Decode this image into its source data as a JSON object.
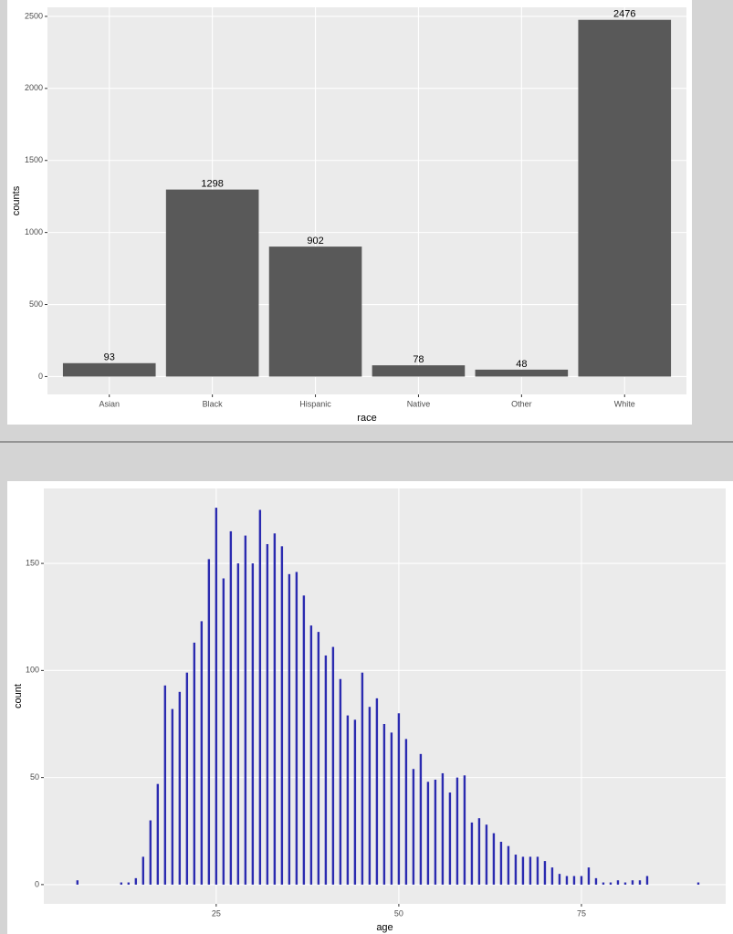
{
  "chart_data": [
    {
      "type": "bar",
      "x_label": "race",
      "y_label": "counts",
      "categories": [
        "Asian",
        "Black",
        "Hispanic",
        "Native",
        "Other",
        "White"
      ],
      "values": [
        93,
        1298,
        902,
        78,
        48,
        2476
      ],
      "value_labels": [
        "93",
        "1298",
        "902",
        "78",
        "48",
        "2476"
      ],
      "color": "#595959",
      "ylim": [
        -124,
        2563
      ],
      "yticks": [
        0,
        500,
        1000,
        1500,
        2000,
        2500
      ],
      "grid": true
    },
    {
      "type": "bar",
      "x_label": "age",
      "y_label": "count",
      "x": [
        6,
        12,
        13,
        14,
        15,
        16,
        17,
        18,
        19,
        20,
        21,
        22,
        23,
        24,
        25,
        26,
        27,
        28,
        29,
        30,
        31,
        32,
        33,
        34,
        35,
        36,
        37,
        38,
        39,
        40,
        41,
        42,
        43,
        44,
        45,
        46,
        47,
        48,
        49,
        50,
        51,
        52,
        53,
        54,
        55,
        56,
        57,
        58,
        59,
        60,
        61,
        62,
        63,
        64,
        65,
        66,
        67,
        68,
        69,
        70,
        71,
        72,
        73,
        74,
        75,
        76,
        77,
        78,
        79,
        80,
        81,
        82,
        83,
        84,
        91
      ],
      "values": [
        2,
        1,
        1,
        3,
        13,
        30,
        47,
        93,
        82,
        90,
        99,
        113,
        123,
        152,
        176,
        143,
        165,
        150,
        163,
        150,
        175,
        159,
        164,
        158,
        145,
        146,
        135,
        121,
        118,
        107,
        111,
        96,
        79,
        77,
        99,
        83,
        87,
        75,
        71,
        80,
        68,
        54,
        61,
        48,
        49,
        52,
        43,
        50,
        51,
        29,
        31,
        28,
        24,
        20,
        18,
        14,
        13,
        13,
        13,
        11,
        8,
        5,
        4,
        4,
        4,
        8,
        3,
        1,
        1,
        2,
        1,
        2,
        2,
        4,
        1
      ],
      "color": "#2b2bb0",
      "xlim": [
        1.4,
        94.75
      ],
      "xticks": [
        25,
        50,
        75
      ],
      "ylim": [
        -9,
        185
      ],
      "yticks": [
        0,
        50,
        100,
        150
      ],
      "grid": true
    }
  ]
}
